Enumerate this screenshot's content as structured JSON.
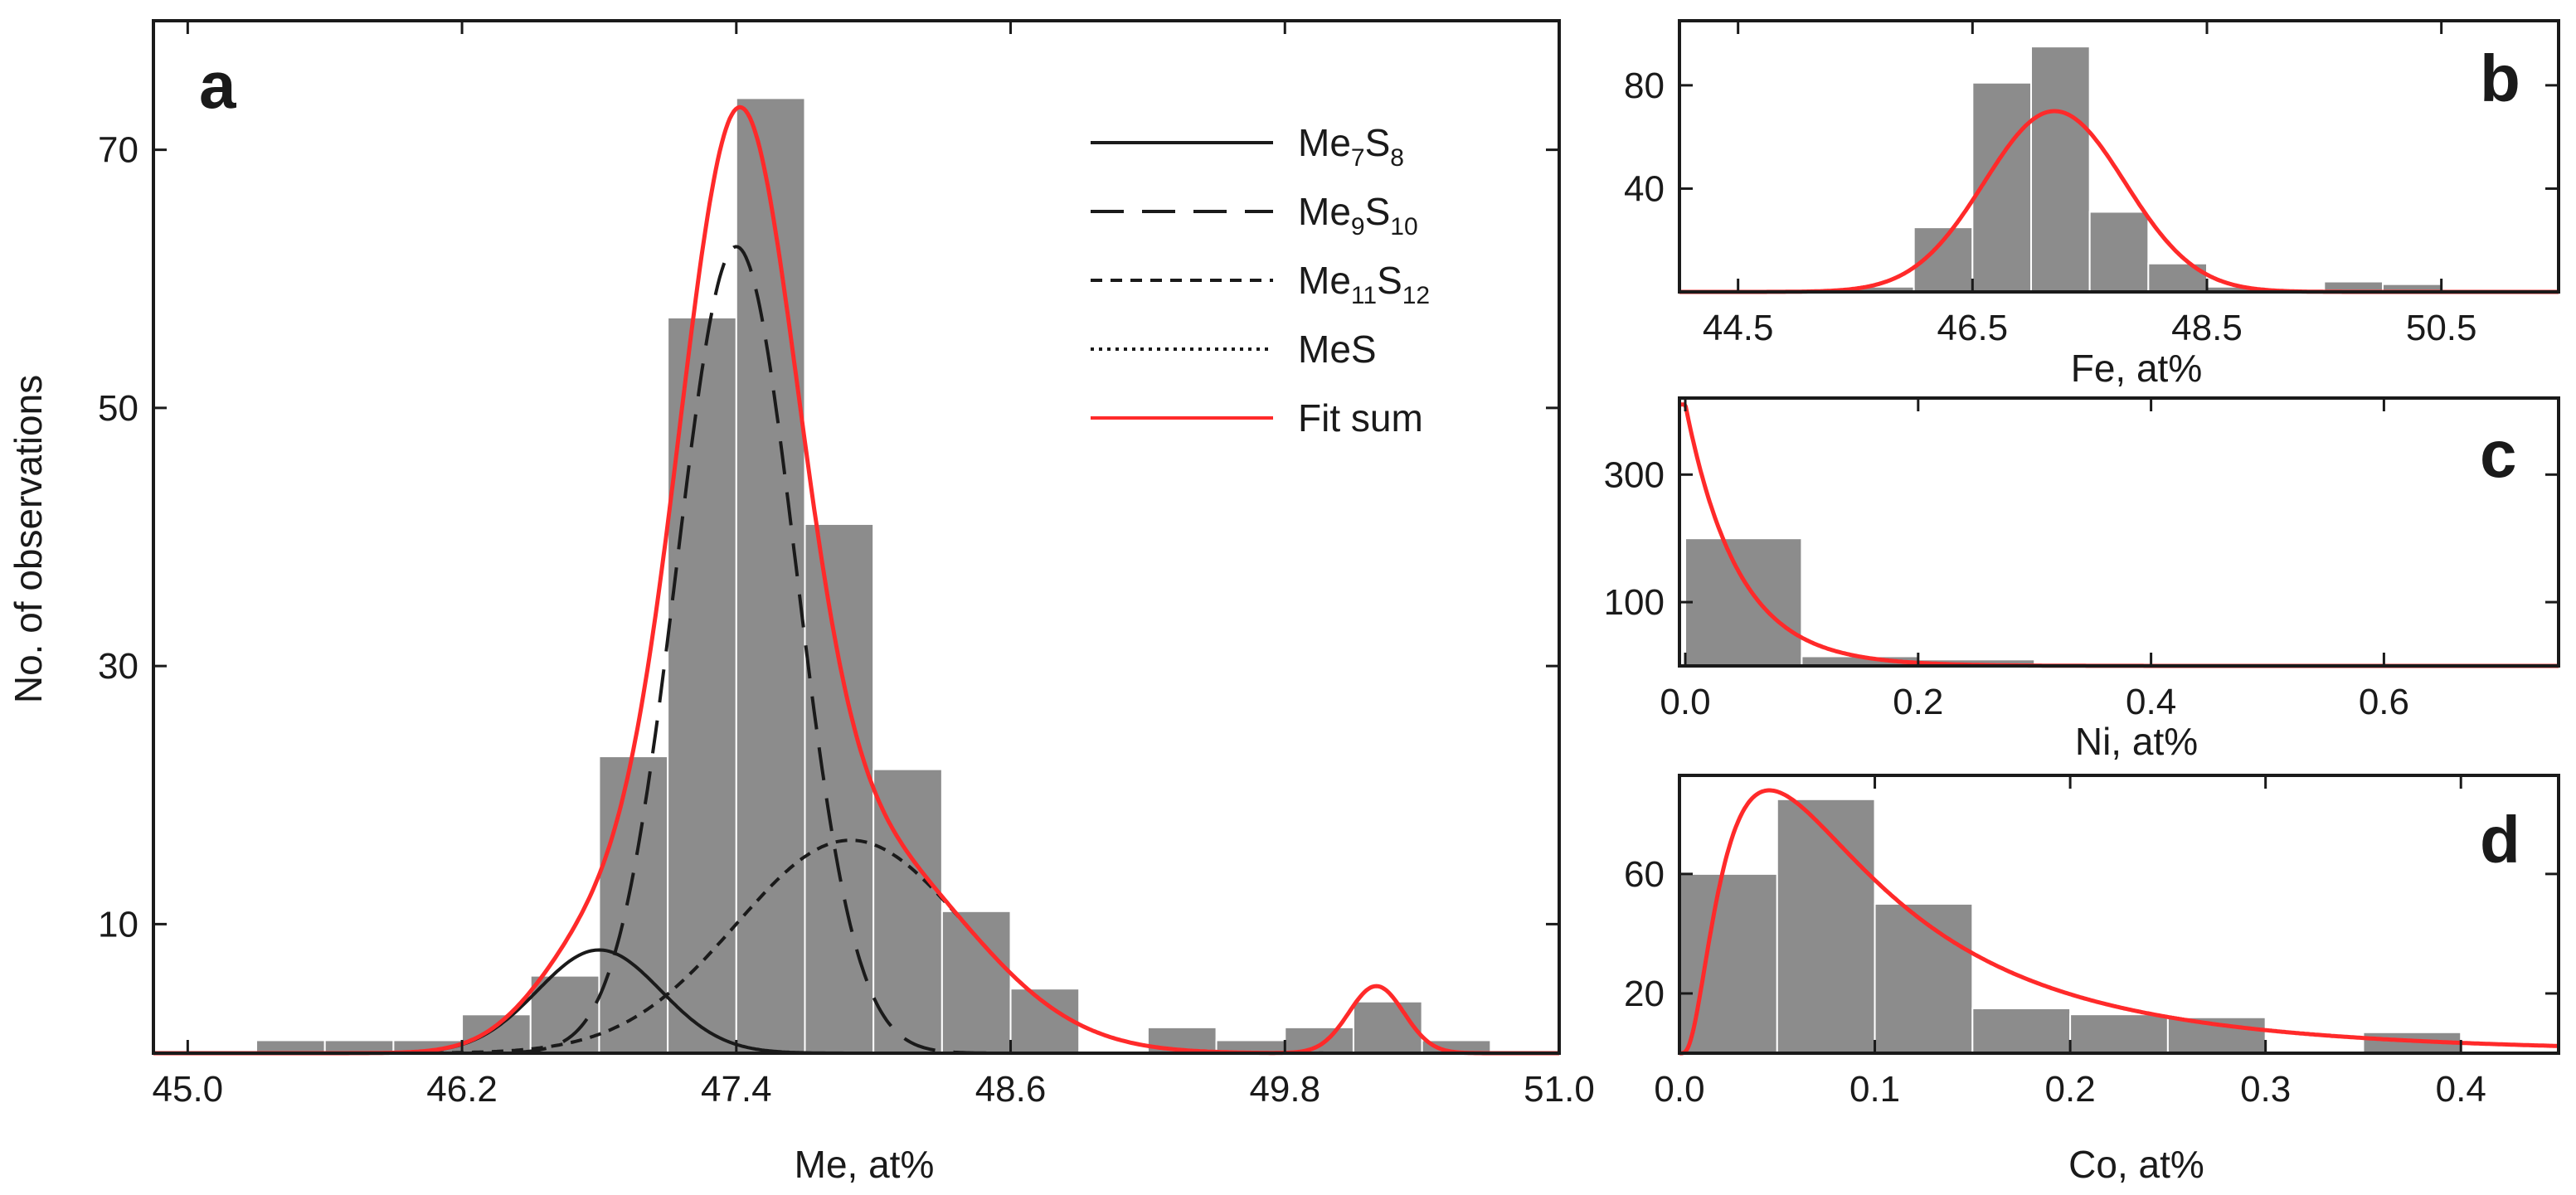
{
  "colors": {
    "bar": "#8c8c8c",
    "fit": "#ff2a2a",
    "component": "#1a1a1a"
  },
  "chart_data": [
    {
      "panel": "a",
      "type": "bar",
      "xlabel": "Me, at%",
      "ylabel": "No. of observations",
      "xlim": [
        44.85,
        51.0
      ],
      "ylim": [
        0,
        80
      ],
      "xticks": [
        "45.0",
        "46.2",
        "47.4",
        "48.6",
        "49.8",
        "51.0"
      ],
      "yticks": [
        "10",
        "30",
        "50",
        "70"
      ],
      "bin_width": 0.3,
      "bins": [
        {
          "x0": 45.3,
          "value": 1
        },
        {
          "x0": 45.6,
          "value": 1
        },
        {
          "x0": 45.9,
          "value": 1
        },
        {
          "x0": 46.2,
          "value": 3
        },
        {
          "x0": 46.5,
          "value": 6
        },
        {
          "x0": 46.8,
          "value": 23
        },
        {
          "x0": 47.1,
          "value": 57
        },
        {
          "x0": 47.4,
          "value": 74
        },
        {
          "x0": 47.7,
          "value": 41
        },
        {
          "x0": 48.0,
          "value": 22
        },
        {
          "x0": 48.3,
          "value": 11
        },
        {
          "x0": 48.6,
          "value": 5
        },
        {
          "x0": 48.9,
          "value": 0
        },
        {
          "x0": 49.2,
          "value": 2
        },
        {
          "x0": 49.5,
          "value": 1
        },
        {
          "x0": 49.8,
          "value": 2
        },
        {
          "x0": 50.1,
          "value": 4
        },
        {
          "x0": 50.4,
          "value": 1
        }
      ],
      "components": [
        {
          "label": {
            "t1": "Me",
            "s1": "7",
            "t2": "S",
            "s2": "8"
          },
          "style": "solid",
          "amp": 8,
          "mean": 46.8,
          "sigma": 0.27
        },
        {
          "label": {
            "t1": "Me",
            "s1": "9",
            "t2": "S",
            "s2": "10"
          },
          "style": "long-dash",
          "amp": 62.5,
          "mean": 47.4,
          "sigma": 0.26
        },
        {
          "label": {
            "t1": "Me",
            "s1": "11",
            "t2": "S",
            "s2": "12"
          },
          "style": "short-dash",
          "amp": 16.5,
          "mean": 47.9,
          "sigma": 0.5
        },
        {
          "label": {
            "t1": "MeS",
            "s1": "",
            "t2": "",
            "s2": ""
          },
          "style": "dotted",
          "amp": 5.2,
          "mean": 50.2,
          "sigma": 0.12
        }
      ],
      "fit_label": "Fit sum",
      "legend_position": "top-right"
    },
    {
      "panel": "b",
      "type": "bar",
      "xlabel": "Fe, at%",
      "xlim": [
        44.0,
        51.5
      ],
      "ylim": [
        0,
        105
      ],
      "xticks": [
        "44.5",
        "46.5",
        "48.5",
        "50.5"
      ],
      "yticks": [
        "40",
        "80"
      ],
      "bin_width": 0.5,
      "bins": [
        {
          "x0": 45.5,
          "value": 2
        },
        {
          "x0": 46.0,
          "value": 25
        },
        {
          "x0": 46.5,
          "value": 81
        },
        {
          "x0": 47.0,
          "value": 95
        },
        {
          "x0": 47.5,
          "value": 31
        },
        {
          "x0": 48.0,
          "value": 11
        },
        {
          "x0": 48.5,
          "value": 2
        },
        {
          "x0": 49.0,
          "value": 1
        },
        {
          "x0": 49.5,
          "value": 4
        },
        {
          "x0": 50.0,
          "value": 3
        }
      ],
      "fit": {
        "type": "gaussian",
        "amp": 70,
        "mean": 47.2,
        "sigma": 0.6
      }
    },
    {
      "panel": "c",
      "type": "bar",
      "xlabel": "Ni, at%",
      "xlim": [
        -0.005,
        0.75
      ],
      "ylim": [
        0,
        420
      ],
      "xticks": [
        "0.0",
        "0.2",
        "0.4",
        "0.6"
      ],
      "yticks": [
        "100",
        "300"
      ],
      "bin_width": 0.1,
      "bins": [
        {
          "x0": 0.0,
          "value": 200
        },
        {
          "x0": 0.1,
          "value": 15
        },
        {
          "x0": 0.2,
          "value": 10
        },
        {
          "x0": 0.3,
          "value": 2
        },
        {
          "x0": 0.4,
          "value": 1
        }
      ],
      "fit": {
        "type": "exponential",
        "amp": 410,
        "tau": 0.045
      }
    },
    {
      "panel": "d",
      "type": "bar",
      "xlabel": "Co, at%",
      "xlim": [
        0.0,
        0.45
      ],
      "ylim": [
        0,
        93
      ],
      "xticks": [
        "0.0",
        "0.1",
        "0.2",
        "0.3",
        "0.4"
      ],
      "yticks": [
        "20",
        "60"
      ],
      "bin_width": 0.05,
      "bins": [
        {
          "x0": 0.0,
          "value": 60
        },
        {
          "x0": 0.05,
          "value": 85
        },
        {
          "x0": 0.1,
          "value": 50
        },
        {
          "x0": 0.15,
          "value": 15
        },
        {
          "x0": 0.2,
          "value": 13
        },
        {
          "x0": 0.25,
          "value": 12
        },
        {
          "x0": 0.3,
          "value": 0
        },
        {
          "x0": 0.35,
          "value": 7
        }
      ],
      "fit": {
        "type": "lognormal",
        "amp": 88,
        "mode": 0.046,
        "sigma": 0.85
      }
    }
  ]
}
